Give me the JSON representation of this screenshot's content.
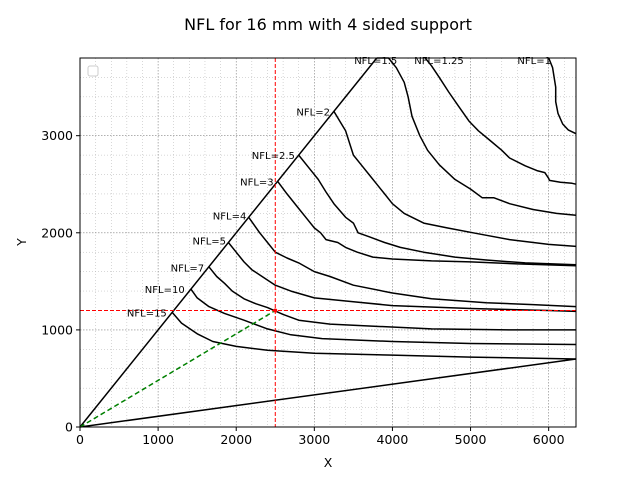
{
  "chart_data": {
    "type": "line",
    "title": "NFL for 16 mm with 4 sided support",
    "xlabel": "X",
    "ylabel": "Y",
    "xlim": [
      0,
      6350
    ],
    "ylim": [
      0,
      3800
    ],
    "xticks": [
      0,
      1000,
      2000,
      3000,
      4000,
      5000,
      6000
    ],
    "yticks": [
      0,
      1000,
      2000,
      3000
    ],
    "grid": "major and minor, dotted gray",
    "legend": "empty, top-left",
    "boundaries": {
      "upper_diagonal": [
        [
          0,
          0
        ],
        [
          3800,
          3800
        ]
      ],
      "lower_diagonal": [
        [
          0,
          0
        ],
        [
          6350,
          700
        ]
      ]
    },
    "reference_lines": {
      "vertical_x": 2500,
      "horizontal_y": 1200,
      "color": "#ff0000"
    },
    "reference_diagonal": {
      "points": [
        [
          0,
          0
        ],
        [
          2500,
          1200
        ]
      ],
      "color": "#008000"
    },
    "contours": [
      {
        "label": "NFL=1",
        "label_at": [
          5600,
          3780
        ],
        "points": [
          [
            6000,
            3800
          ],
          [
            6050,
            3700
          ],
          [
            6090,
            3500
          ],
          [
            6090,
            3350
          ],
          [
            6120,
            3230
          ],
          [
            6180,
            3120
          ],
          [
            6250,
            3060
          ],
          [
            6350,
            3020
          ]
        ]
      },
      {
        "label": "NFL=1.25",
        "label_at": [
          4280,
          3780
        ],
        "points": [
          [
            4420,
            3800
          ],
          [
            4500,
            3720
          ],
          [
            4600,
            3600
          ],
          [
            4720,
            3450
          ],
          [
            4850,
            3300
          ],
          [
            4980,
            3150
          ],
          [
            5100,
            3050
          ],
          [
            5250,
            2950
          ],
          [
            5400,
            2850
          ],
          [
            5500,
            2770
          ],
          [
            5700,
            2690
          ],
          [
            5850,
            2640
          ],
          [
            5950,
            2620
          ],
          [
            6000,
            2560
          ],
          [
            6010,
            2540
          ],
          [
            6150,
            2520
          ],
          [
            6300,
            2510
          ],
          [
            6350,
            2500
          ]
        ]
      },
      {
        "label": "NFL=1.5",
        "label_at": [
          3510,
          3780
        ],
        "points": [
          [
            3800,
            3800
          ],
          [
            3950,
            3800
          ],
          [
            4050,
            3700
          ],
          [
            4150,
            3550
          ],
          [
            4200,
            3400
          ],
          [
            4250,
            3200
          ],
          [
            4350,
            3000
          ],
          [
            4450,
            2850
          ],
          [
            4600,
            2700
          ],
          [
            4800,
            2550
          ],
          [
            5000,
            2450
          ],
          [
            5150,
            2360
          ],
          [
            5300,
            2360
          ],
          [
            5500,
            2300
          ],
          [
            5800,
            2240
          ],
          [
            6100,
            2200
          ],
          [
            6350,
            2180
          ]
        ]
      },
      {
        "label": "NFL=2",
        "label_at": [
          2770,
          3250
        ],
        "points": [
          [
            3250,
            3250
          ],
          [
            3400,
            3050
          ],
          [
            3500,
            2800
          ],
          [
            3600,
            2700
          ],
          [
            3700,
            2600
          ],
          [
            3800,
            2500
          ],
          [
            3900,
            2400
          ],
          [
            4000,
            2300
          ],
          [
            4150,
            2200
          ],
          [
            4400,
            2100
          ],
          [
            4700,
            2050
          ],
          [
            5100,
            1990
          ],
          [
            5500,
            1930
          ],
          [
            6000,
            1880
          ],
          [
            6350,
            1860
          ]
        ]
      },
      {
        "label": "NFL=2.5",
        "label_at": [
          2200,
          2800
        ],
        "points": [
          [
            2800,
            2800
          ],
          [
            2950,
            2650
          ],
          [
            3050,
            2550
          ],
          [
            3150,
            2420
          ],
          [
            3250,
            2300
          ],
          [
            3400,
            2160
          ],
          [
            3500,
            2100
          ],
          [
            3560,
            2000
          ],
          [
            3700,
            1960
          ],
          [
            3900,
            1900
          ],
          [
            4100,
            1850
          ],
          [
            4400,
            1800
          ],
          [
            4800,
            1750
          ],
          [
            5200,
            1720
          ],
          [
            5700,
            1690
          ],
          [
            6350,
            1670
          ]
        ]
      },
      {
        "label": "NFL=3",
        "label_at": [
          2050,
          2530
        ],
        "points": [
          [
            2530,
            2530
          ],
          [
            2650,
            2400
          ],
          [
            2800,
            2250
          ],
          [
            2900,
            2150
          ],
          [
            3000,
            2050
          ],
          [
            3080,
            2000
          ],
          [
            3150,
            1930
          ],
          [
            3300,
            1900
          ],
          [
            3400,
            1850
          ],
          [
            3550,
            1800
          ],
          [
            3750,
            1750
          ],
          [
            4000,
            1730
          ],
          [
            4500,
            1710
          ],
          [
            5000,
            1700
          ],
          [
            5600,
            1680
          ],
          [
            6350,
            1660
          ]
        ]
      },
      {
        "label": "NFL=4",
        "label_at": [
          1700,
          2180
        ],
        "points": [
          [
            2160,
            2160
          ],
          [
            2300,
            2000
          ],
          [
            2400,
            1900
          ],
          [
            2500,
            1800
          ],
          [
            2650,
            1740
          ],
          [
            2800,
            1690
          ],
          [
            3000,
            1600
          ],
          [
            3200,
            1550
          ],
          [
            3500,
            1460
          ],
          [
            4000,
            1380
          ],
          [
            4500,
            1320
          ],
          [
            5200,
            1280
          ],
          [
            5800,
            1260
          ],
          [
            6350,
            1240
          ]
        ]
      },
      {
        "label": "NFL=5",
        "label_at": [
          1440,
          1920
        ],
        "points": [
          [
            1900,
            1900
          ],
          [
            2000,
            1800
          ],
          [
            2100,
            1700
          ],
          [
            2200,
            1620
          ],
          [
            2350,
            1540
          ],
          [
            2500,
            1460
          ],
          [
            2700,
            1400
          ],
          [
            3000,
            1330
          ],
          [
            3500,
            1290
          ],
          [
            4000,
            1250
          ],
          [
            5000,
            1220
          ],
          [
            6000,
            1200
          ],
          [
            6350,
            1190
          ]
        ]
      },
      {
        "label": "NFL=7",
        "label_at": [
          1160,
          1640
        ],
        "points": [
          [
            1650,
            1650
          ],
          [
            1750,
            1550
          ],
          [
            1850,
            1480
          ],
          [
            1950,
            1400
          ],
          [
            2100,
            1320
          ],
          [
            2250,
            1270
          ],
          [
            2400,
            1230
          ],
          [
            2600,
            1160
          ],
          [
            2800,
            1100
          ],
          [
            3200,
            1060
          ],
          [
            3700,
            1040
          ],
          [
            4500,
            1010
          ],
          [
            5500,
            1000
          ],
          [
            6350,
            1000
          ]
        ]
      },
      {
        "label": "NFL=10",
        "label_at": [
          830,
          1420
        ],
        "points": [
          [
            1420,
            1420
          ],
          [
            1500,
            1330
          ],
          [
            1650,
            1240
          ],
          [
            1850,
            1170
          ],
          [
            2100,
            1100
          ],
          [
            2400,
            1010
          ],
          [
            2700,
            950
          ],
          [
            3100,
            910
          ],
          [
            4000,
            880
          ],
          [
            5000,
            860
          ],
          [
            6350,
            850
          ]
        ]
      },
      {
        "label": "NFL=15",
        "label_at": [
          600,
          1180
        ],
        "points": [
          [
            1180,
            1180
          ],
          [
            1300,
            1070
          ],
          [
            1500,
            960
          ],
          [
            1700,
            880
          ],
          [
            2000,
            830
          ],
          [
            2400,
            790
          ],
          [
            3000,
            760
          ],
          [
            4000,
            740
          ],
          [
            5000,
            720
          ],
          [
            6350,
            700
          ]
        ]
      }
    ]
  }
}
